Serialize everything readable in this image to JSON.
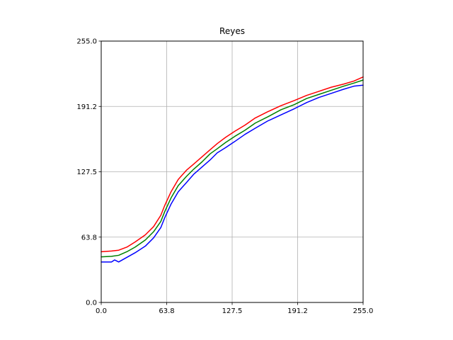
{
  "chart_data": {
    "type": "line",
    "title": "Reyes",
    "xlabel": "",
    "ylabel": "",
    "xlim": [
      0,
      255
    ],
    "ylim": [
      0,
      255
    ],
    "x_ticks": [
      0,
      63.75,
      127.5,
      191.25,
      255
    ],
    "x_tick_labels": [
      "0.0",
      "63.8",
      "127.5",
      "191.2",
      "255.0"
    ],
    "y_ticks": [
      0,
      63.75,
      127.5,
      191.25,
      255
    ],
    "y_tick_labels": [
      "0.0",
      "63.8",
      "127.5",
      "191.2",
      "255.0"
    ],
    "grid": true,
    "legend": "none",
    "series": [
      {
        "color": "#ff0000",
        "x": [
          0,
          10,
          17,
          25,
          33,
          43,
          51,
          58,
          62,
          68,
          75,
          83,
          90,
          98,
          106,
          113,
          121,
          130,
          140,
          150,
          162,
          175,
          188,
          200,
          212,
          224,
          236,
          246,
          255
        ],
        "y": [
          49.5,
          50.2,
          51,
          54,
          59,
          66,
          74,
          85,
          95,
          108,
          120,
          129,
          135,
          142,
          149,
          155,
          161,
          167,
          173,
          180,
          186,
          192,
          197,
          202,
          206,
          210,
          213,
          216,
          220
        ]
      },
      {
        "color": "#008000",
        "x": [
          0,
          10,
          17,
          25,
          33,
          43,
          51,
          58,
          62,
          68,
          75,
          83,
          90,
          98,
          106,
          113,
          121,
          130,
          140,
          150,
          162,
          175,
          188,
          200,
          212,
          224,
          236,
          246,
          255
        ],
        "y": [
          44.5,
          45,
          46,
          49.5,
          54,
          61,
          69,
          79,
          89,
          102,
          114,
          123,
          130,
          137,
          145,
          150,
          156,
          162,
          168,
          175,
          181,
          188,
          193,
          199,
          203,
          207,
          211,
          214,
          217
        ]
      },
      {
        "color": "#0000ff",
        "x": [
          0,
          10,
          13,
          17,
          25,
          33,
          43,
          51,
          58,
          62,
          68,
          75,
          83,
          90,
          98,
          106,
          113,
          121,
          130,
          140,
          150,
          162,
          175,
          188,
          200,
          212,
          224,
          236,
          246,
          255
        ],
        "y": [
          39.5,
          39.5,
          41.5,
          39.5,
          44,
          48.5,
          55,
          63,
          73,
          83,
          96,
          108,
          117,
          125,
          132,
          139,
          146,
          151,
          157,
          164,
          170,
          177,
          183,
          189,
          195,
          200,
          204,
          208,
          211,
          212
        ]
      }
    ]
  }
}
